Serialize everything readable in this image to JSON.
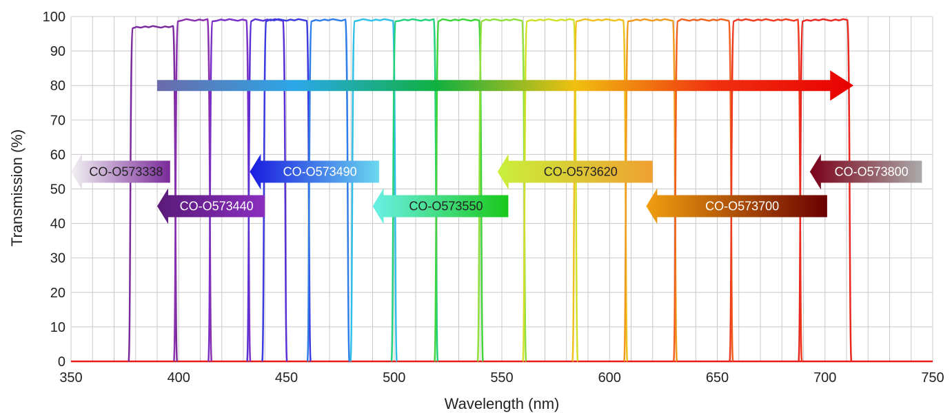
{
  "chart_data": {
    "type": "line",
    "title": "",
    "xlabel": "Wavelength (nm)",
    "ylabel": "Transmission (%)",
    "xlim": [
      350,
      750
    ],
    "ylim": [
      0,
      100
    ],
    "xticks": [
      350,
      400,
      450,
      500,
      550,
      600,
      650,
      700,
      750
    ],
    "yticks": [
      0,
      10,
      20,
      30,
      40,
      50,
      60,
      70,
      80,
      90,
      100
    ],
    "grid": true,
    "series": [
      {
        "start": 378,
        "end": 398,
        "level": 97,
        "color": "#7b2a9e"
      },
      {
        "start": 399,
        "end": 414,
        "level": 99,
        "color": "#8a2fb0"
      },
      {
        "start": 415,
        "end": 432,
        "level": 99,
        "color": "#7a30c8"
      },
      {
        "start": 433,
        "end": 449,
        "level": 99,
        "color": "#5a2fd6"
      },
      {
        "start": 440,
        "end": 460,
        "level": 99,
        "color": "#3a3ae0"
      },
      {
        "start": 461,
        "end": 478,
        "level": 99,
        "color": "#2f7de8"
      },
      {
        "start": 481,
        "end": 500,
        "level": 99,
        "color": "#2fbfe8"
      },
      {
        "start": 500,
        "end": 519,
        "level": 99,
        "color": "#22d27a"
      },
      {
        "start": 520,
        "end": 540,
        "level": 99,
        "color": "#3fd43a"
      },
      {
        "start": 540,
        "end": 560,
        "level": 99,
        "color": "#8fe03a"
      },
      {
        "start": 561,
        "end": 584,
        "level": 99,
        "color": "#d2e02a"
      },
      {
        "start": 584,
        "end": 607,
        "level": 99,
        "color": "#f0c01e"
      },
      {
        "start": 608,
        "end": 630,
        "level": 99,
        "color": "#f09a1e"
      },
      {
        "start": 631,
        "end": 656,
        "level": 99,
        "color": "#f0601e"
      },
      {
        "start": 657,
        "end": 688,
        "level": 99,
        "color": "#ee3a1e"
      },
      {
        "start": 689,
        "end": 711,
        "level": 99,
        "color": "#e8281e"
      }
    ],
    "annotations": [
      {
        "text": "CO-O573338",
        "wl_from": 350,
        "wl_to": 396,
        "y": 55,
        "color_from": "#f2f2f2",
        "color_to": "#7a2a9a",
        "text_color": "#222222"
      },
      {
        "text": "CO-O573440",
        "wl_from": 390,
        "wl_to": 440,
        "y": 45,
        "color_from": "#5a1a78",
        "color_to": "#8a2fc0",
        "text_color": "#ffffff"
      },
      {
        "text": "CO-O573490",
        "wl_from": 433,
        "wl_to": 493,
        "y": 55,
        "color_from": "#1a1ae0",
        "color_to": "#6ad8f0",
        "text_color": "#ffffff"
      },
      {
        "text": "CO-O573550",
        "wl_from": 490,
        "wl_to": 553,
        "y": 45,
        "color_from": "#6af0e8",
        "color_to": "#1ac81a",
        "text_color": "#222222"
      },
      {
        "text": "CO-O573620",
        "wl_from": 548,
        "wl_to": 620,
        "y": 55,
        "color_from": "#c8f03a",
        "color_to": "#f0a030",
        "text_color": "#222222"
      },
      {
        "text": "CO-O573700",
        "wl_from": 617,
        "wl_to": 701,
        "y": 45,
        "color_from": "#f0a010",
        "color_to": "#6a0000",
        "text_color": "#ffffff"
      },
      {
        "text": "CO-O573800",
        "wl_from": 693,
        "wl_to": 745,
        "y": 55,
        "color_from": "#7a0018",
        "color_to": "#aaaaaa",
        "text_color": "#ffffff"
      }
    ],
    "spectrum_arrow": {
      "wl_from": 390,
      "wl_to": 712,
      "y": 80,
      "colors": [
        "#6a6aaa",
        "#2aa8e8",
        "#10b040",
        "#f0c010",
        "#f03010",
        "#e80000"
      ]
    }
  }
}
